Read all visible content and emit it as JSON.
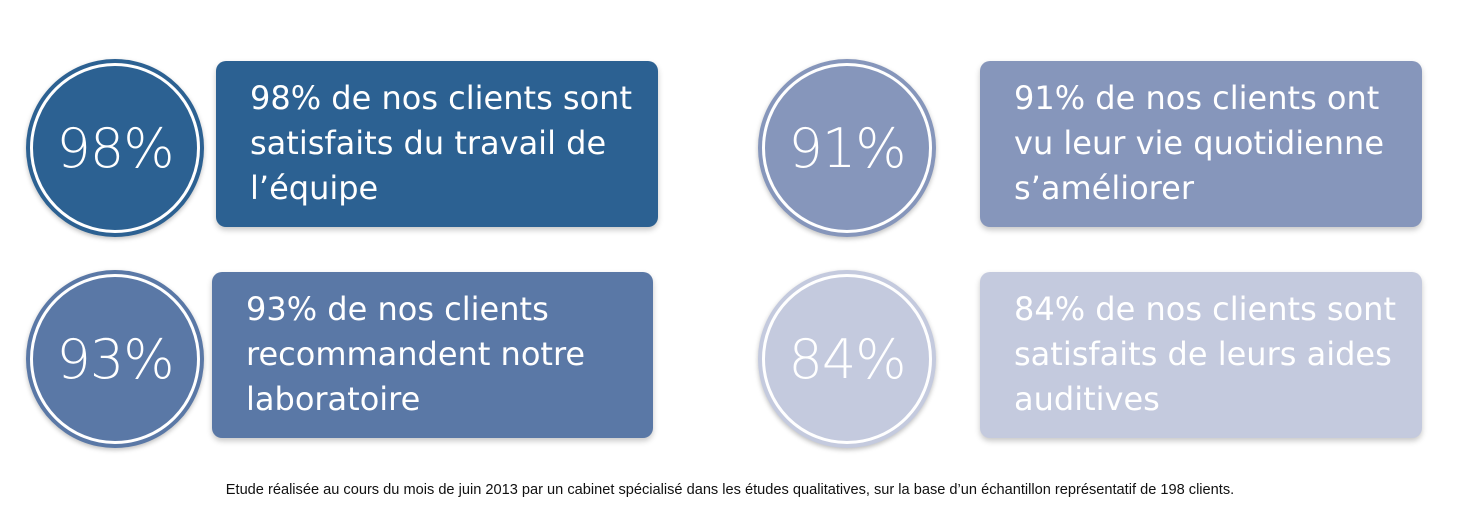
{
  "stats": [
    {
      "percent": "98%",
      "lines": [
        "98% de nos clients sont",
        "satisfaits du travail de",
        "l’équipe"
      ],
      "color": "#2c6192"
    },
    {
      "percent": "91%",
      "lines": [
        "91% de nos clients ont",
        "vu leur vie quotidienne",
        "s’améliorer"
      ],
      "color": "#8696bb"
    },
    {
      "percent": "93%",
      "lines": [
        "93% de nos clients",
        "recommandent notre",
        "laboratoire"
      ],
      "color": "#5a78a6"
    },
    {
      "percent": "84%",
      "lines": [
        "84% de nos clients sont",
        "satisfaits de leurs aides",
        "auditives"
      ],
      "color": "#c4cade"
    }
  ],
  "footnote": "Etude réalisée au cours du mois de juin 2013 par un cabinet spécialisé dans les études qualitatives, sur la base d’un échantillon représentatif de 198 clients."
}
